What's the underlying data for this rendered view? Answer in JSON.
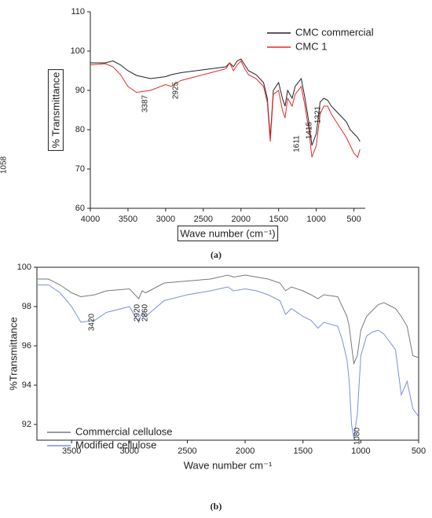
{
  "chart_data": [
    {
      "type": "line",
      "caption": "(a)",
      "x_label": "Wave number (cm⁻¹)",
      "y_label": "% Transmittance",
      "x": [
        4000,
        3800,
        3700,
        3600,
        3500,
        3387,
        3200,
        3000,
        2925,
        2800,
        2600,
        2400,
        2200,
        2150,
        2100,
        2050,
        2000,
        1950,
        1900,
        1800,
        1700,
        1650,
        1611,
        1570,
        1500,
        1450,
        1415,
        1380,
        1321,
        1280,
        1200,
        1150,
        1100,
        1058,
        1000,
        950,
        900,
        850,
        800,
        700,
        600,
        550,
        500,
        450,
        420
      ],
      "series": [
        {
          "name": "CMC commercial",
          "color": "#222222",
          "values": [
            97,
            97,
            97.5,
            96.5,
            95,
            93.8,
            93,
            93.5,
            94,
            94.5,
            95,
            95.5,
            96,
            97,
            96,
            97.5,
            98,
            96.5,
            95,
            94,
            92,
            88,
            78,
            90,
            92,
            88,
            86,
            90,
            88,
            91,
            93,
            88,
            82,
            76,
            79,
            87,
            88,
            87.5,
            86,
            84,
            82,
            80,
            79,
            78,
            77
          ]
        },
        {
          "name": "CMC 1",
          "color": "#e8272a",
          "values": [
            96.5,
            96.8,
            96,
            94,
            91,
            89.5,
            90,
            91.5,
            91,
            92.5,
            93.5,
            94.5,
            95.5,
            97,
            95,
            96.5,
            97.5,
            95.5,
            94,
            93,
            91,
            87,
            77,
            89,
            90,
            85,
            83,
            88,
            86,
            89,
            91,
            86,
            80,
            73,
            76,
            84,
            86,
            86,
            84,
            81,
            78,
            76,
            74,
            73,
            75
          ]
        }
      ],
      "annotations": [
        "3387",
        "2925",
        "1611",
        "1415",
        "1321",
        "1058"
      ],
      "xlim": [
        4000,
        350
      ],
      "xticks": [
        4000,
        3500,
        3000,
        2500,
        2000,
        1500,
        1000,
        500
      ],
      "ylim": [
        60,
        110
      ],
      "yticks": [
        60,
        70,
        80,
        90,
        100,
        110
      ],
      "legend": "upper-right",
      "frame": "open"
    },
    {
      "type": "line",
      "caption": "(b)",
      "x_label": "Wave number cm⁻¹",
      "y_label": "%Transmittance",
      "x": [
        3800,
        3700,
        3600,
        3500,
        3420,
        3300,
        3200,
        3000,
        2920,
        2890,
        2860,
        2700,
        2500,
        2300,
        2150,
        2100,
        2000,
        1900,
        1800,
        1700,
        1650,
        1600,
        1500,
        1430,
        1370,
        1320,
        1200,
        1160,
        1120,
        1100,
        1080,
        1060,
        1030,
        1000,
        950,
        900,
        850,
        800,
        700,
        650,
        600,
        550,
        500
      ],
      "series": [
        {
          "name": "Commercial cellulose",
          "color": "#7a7a7a",
          "values": [
            99.4,
            99.4,
            99.1,
            98.7,
            98.5,
            98.6,
            98.8,
            98.9,
            98.4,
            98.8,
            98.7,
            99.2,
            99.3,
            99.4,
            99.6,
            99.5,
            99.6,
            99.5,
            99.4,
            99.2,
            98.8,
            99.0,
            98.8,
            98.6,
            98.4,
            98.6,
            98.5,
            98.0,
            97.5,
            97.0,
            96.0,
            95.1,
            95.5,
            96.8,
            97.5,
            97.8,
            98.1,
            98.2,
            97.9,
            97.5,
            97.0,
            95.5,
            95.4
          ]
        },
        {
          "name": "Modified cellulose",
          "color": "#7b8fe0",
          "values": [
            99.1,
            99.1,
            98.7,
            98.0,
            97.2,
            97.3,
            97.7,
            98.0,
            97.2,
            97.7,
            97.5,
            98.3,
            98.6,
            98.8,
            99.0,
            98.8,
            98.9,
            98.8,
            98.6,
            98.3,
            97.6,
            97.9,
            97.5,
            97.3,
            96.9,
            97.2,
            97.0,
            96.3,
            95.3,
            94.2,
            92.0,
            91.3,
            92.5,
            95.5,
            96.5,
            96.7,
            96.8,
            96.6,
            95.8,
            93.5,
            94.2,
            92.8,
            92.4
          ]
        }
      ],
      "annotations": [
        "3420",
        "2920",
        "2860",
        "1080"
      ],
      "xlim": [
        3800,
        500
      ],
      "xticks": [
        3500,
        3000,
        2500,
        2000,
        1500,
        1000,
        500
      ],
      "ylim": [
        91.2,
        100
      ],
      "yticks": [
        92,
        94,
        96,
        98,
        100
      ],
      "legend": "lower-left",
      "frame": "box"
    }
  ]
}
